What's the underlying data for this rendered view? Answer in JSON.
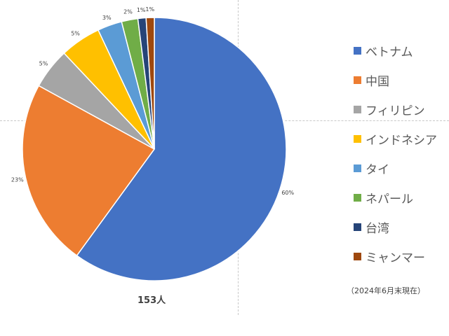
{
  "chart_data": {
    "type": "pie",
    "categories": [
      "ベトナム",
      "中国",
      "フィリピン",
      "インドネシア",
      "タイ",
      "ネパール",
      "台湾",
      "ミャンマー"
    ],
    "values": [
      60,
      23,
      5,
      5,
      3,
      2,
      1,
      1
    ],
    "data_labels": [
      "60%",
      "23%",
      "5%",
      "5%",
      "3%",
      "2%",
      "1%",
      "1%"
    ],
    "colors": [
      "#4472C4",
      "#ED7D31",
      "#A5A5A5",
      "#FFC000",
      "#5B9BD5",
      "#70AD47",
      "#264478",
      "#9E480E"
    ],
    "legend_position": "right"
  },
  "total_label": "153人",
  "note": "（2024年6月末現在）"
}
